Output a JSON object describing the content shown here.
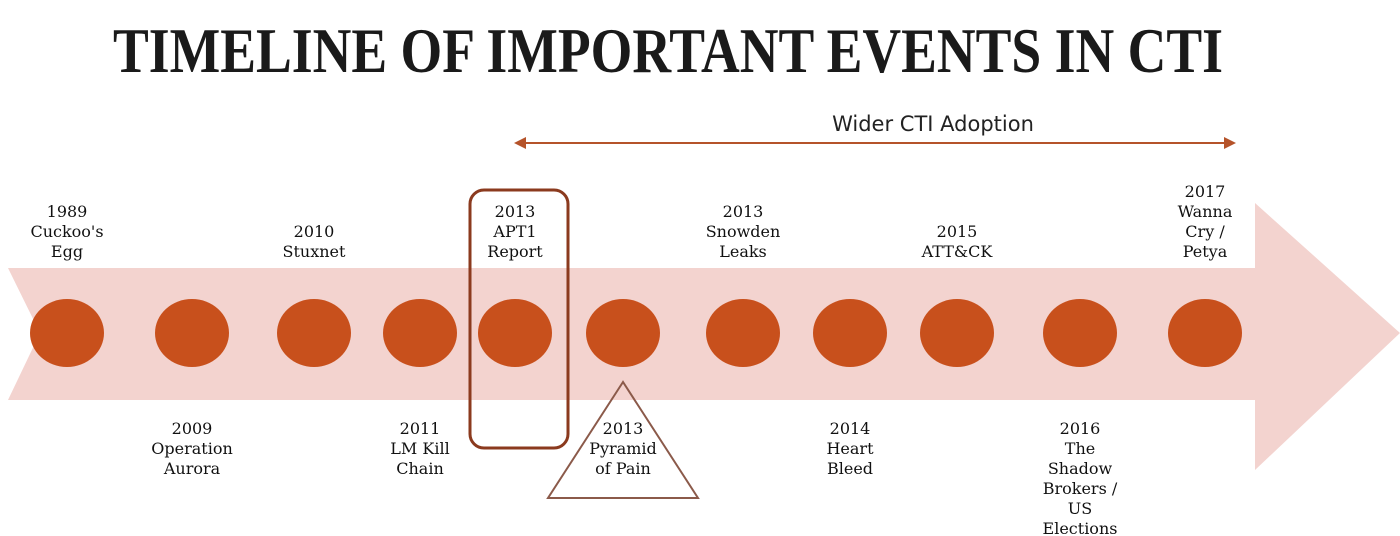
{
  "title": "TIMELINE OF IMPORTANT EVENTS IN CTI",
  "span_label": "Wider CTI Adoption",
  "events": [
    {
      "year": "1989",
      "lines": [
        "Cuckoo's",
        "Egg"
      ]
    },
    {
      "year": "2009",
      "lines": [
        "Operation",
        "Aurora"
      ]
    },
    {
      "year": "2010",
      "lines": [
        "Stuxnet"
      ]
    },
    {
      "year": "2011",
      "lines": [
        "LM Kill",
        "Chain"
      ]
    },
    {
      "year": "2013",
      "lines": [
        "APT1",
        "Report"
      ]
    },
    {
      "year": "2013",
      "lines": [
        "Pyramid",
        "of Pain"
      ]
    },
    {
      "year": "2013",
      "lines": [
        "Snowden",
        "Leaks"
      ]
    },
    {
      "year": "2014",
      "lines": [
        "Heart",
        "Bleed"
      ]
    },
    {
      "year": "2015",
      "lines": [
        "ATT&CK"
      ]
    },
    {
      "year": "2016",
      "lines": [
        "The",
        "Shadow",
        "Brokers /",
        "US",
        "Elections"
      ]
    },
    {
      "year": "2017",
      "lines": [
        "Wanna",
        "Cry /",
        "Petya"
      ]
    }
  ]
}
